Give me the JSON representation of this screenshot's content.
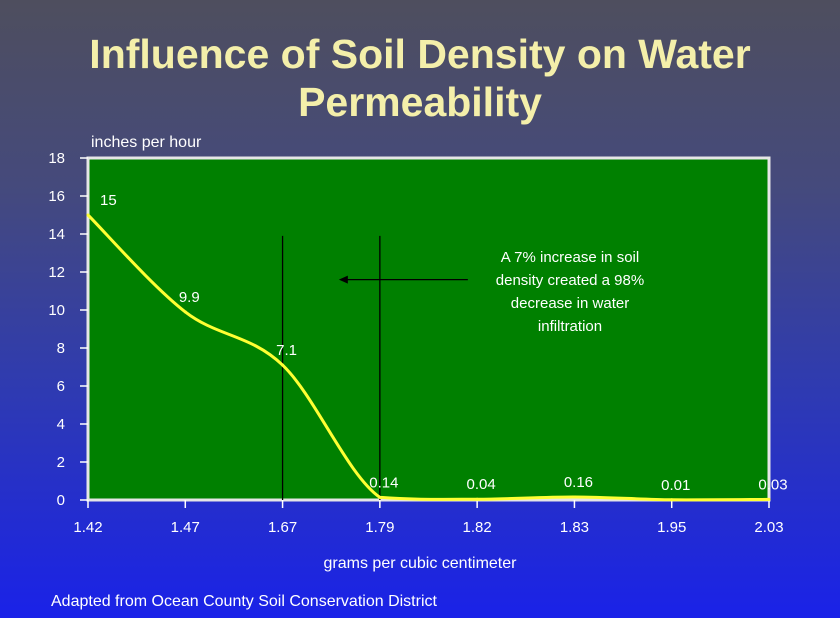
{
  "title_lines": [
    "Influence of Soil Density on Water",
    "Permeability"
  ],
  "unit_label": "inches per hour",
  "xlabel": "grams per cubic centimeter",
  "source": "Adapted from Ocean County Soil Conservation District",
  "annotation_lines": [
    "A 7% increase in soil",
    "density created a 98%",
    "decrease in water",
    "infiltration"
  ],
  "colors": {
    "plot_bg": "#008000",
    "plot_border": "#e6e6e6",
    "line": "#ffff33",
    "text": "#ffffff",
    "title": "#f4efaa"
  },
  "chart_data": {
    "type": "line",
    "title": "Influence of Soil Density on Water Permeability",
    "ylabel": "inches per hour",
    "xlabel": "grams per cubic centimeter",
    "categories": [
      "1.42",
      "1.47",
      "1.67",
      "1.79",
      "1.82",
      "1.83",
      "1.95",
      "2.03"
    ],
    "category_labels": [
      "1.42",
      "1.47",
      "1.67",
      "1.79",
      "1.82",
      "1.83",
      "1.95",
      "2.03"
    ],
    "series": [
      {
        "values": [
          15,
          9.9,
          7.1,
          0.14,
          0.04,
          0.16,
          0.01,
          0.03
        ]
      }
    ],
    "data_labels": [
      "15",
      "9.9",
      "7.1",
      "0.14",
      "0.04",
      "0.16",
      "0.01",
      "0.03"
    ],
    "yticks": [
      "0",
      "2",
      "4",
      "6",
      "8",
      "10",
      "12",
      "14",
      "16",
      "18"
    ],
    "ylim": [
      0,
      18
    ],
    "reference_lines_at": [
      "1.67",
      "1.79"
    ],
    "arrow": "points left toward the reference lines",
    "grid": false
  }
}
